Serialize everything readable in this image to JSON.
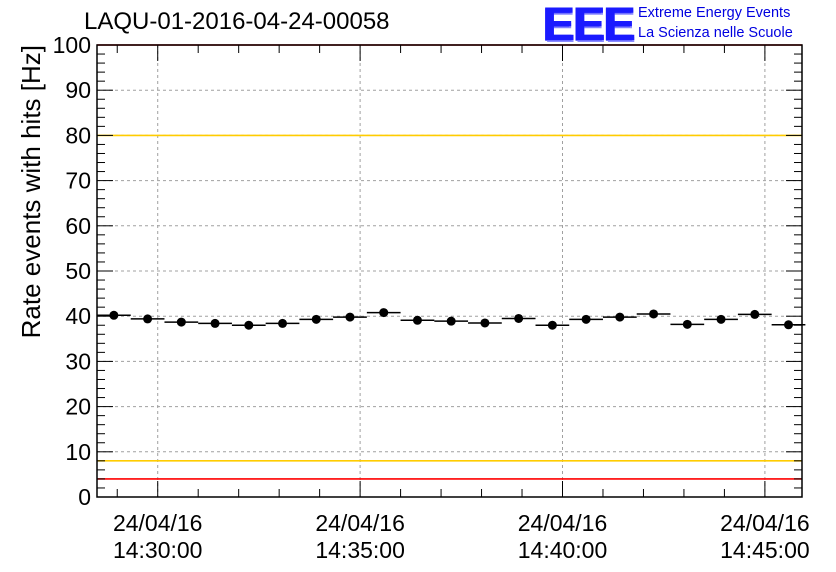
{
  "header": {
    "run_title": "LAQU-01-2016-04-24-00058",
    "logo_mark": "EEE",
    "logo_line1": "Extreme Energy Events",
    "logo_line2": "La Scienza nelle Scuole"
  },
  "chart_data": {
    "type": "scatter",
    "title": "LAQU-01-2016-04-24-00058",
    "ylabel": "Rate events with hits [Hz]",
    "xlabel": "",
    "ylim": [
      0,
      100
    ],
    "yticks": [
      0,
      10,
      20,
      30,
      40,
      50,
      60,
      70,
      80,
      90,
      100
    ],
    "xlim": [
      "24/04/16 14:28:30",
      "24/04/16 14:45:55"
    ],
    "xticks": [
      {
        "date": "24/04/16",
        "time": "14:30:00"
      },
      {
        "date": "24/04/16",
        "time": "14:35:00"
      },
      {
        "date": "24/04/16",
        "time": "14:40:00"
      },
      {
        "date": "24/04/16",
        "time": "14:45:00"
      }
    ],
    "grid": true,
    "bin_width_s": 50,
    "series": [
      {
        "x": [
          "14:28:55",
          "14:29:45",
          "14:30:35",
          "14:31:25",
          "14:32:15",
          "14:33:05",
          "14:33:55",
          "14:34:45",
          "14:35:35",
          "14:36:25",
          "14:37:15",
          "14:38:05",
          "14:38:55",
          "14:39:45",
          "14:40:35",
          "14:41:25",
          "14:42:15",
          "14:43:05",
          "14:43:55",
          "14:44:45",
          "14:45:35"
        ],
        "y": [
          40.2,
          39.4,
          38.7,
          38.4,
          38.0,
          38.4,
          39.3,
          39.8,
          40.8,
          39.1,
          38.9,
          38.5,
          39.5,
          38.0,
          39.3,
          39.8,
          40.5,
          38.2,
          39.3,
          40.4,
          38.1
        ],
        "color": "#000000"
      }
    ],
    "reference_lines": [
      {
        "y": 100,
        "color": "#ff0000"
      },
      {
        "y": 80,
        "color": "#ffcc00"
      },
      {
        "y": 8,
        "color": "#ffcc00"
      },
      {
        "y": 4,
        "color": "#ff0000"
      }
    ]
  }
}
